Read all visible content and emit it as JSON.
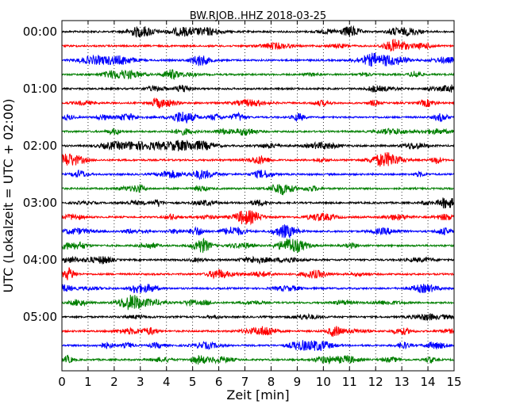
{
  "chart_data": {
    "type": "line",
    "title": "BW.RJOB..HHZ 2018-03-25",
    "xlabel": "Zeit  [min]",
    "ylabel": "UTC (Lokalzeit = UTC + 02:00)",
    "x_ticks": [
      0,
      1,
      2,
      3,
      4,
      5,
      6,
      7,
      8,
      9,
      10,
      11,
      12,
      13,
      14,
      15
    ],
    "xlim": [
      0,
      15
    ],
    "y_ticks": [
      "00:00",
      "01:00",
      "02:00",
      "03:00",
      "04:00",
      "05:00"
    ],
    "trace_interval_min": 15,
    "trace_count": 24,
    "trace_colors": [
      "#000000",
      "#ff0000",
      "#0000ff",
      "#007f00"
    ],
    "grid": {
      "x": "dotted vertical at each minute",
      "y": "none"
    }
  }
}
